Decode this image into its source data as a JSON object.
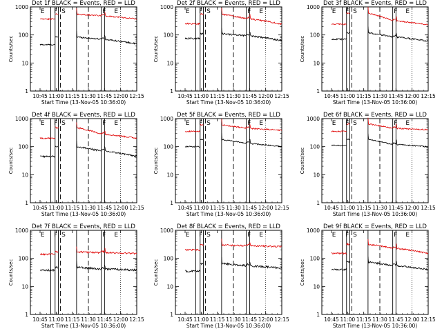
{
  "chart_data": [
    {
      "type": "line",
      "title": "Det 1f BLACK = Events, RED = LLD",
      "xlabel": "Start Time (13-Nov-05 10:36:00)",
      "ylabel": "Counts/sec",
      "series": [
        {
          "name": "Events",
          "color": "#000000",
          "base": [
            45,
            45,
            85,
            85,
            70,
            70,
            48
          ],
          "noise": 0.06
        },
        {
          "name": "LLD",
          "color": "#e00000",
          "base": [
            370,
            370,
            550,
            550,
            480,
            480,
            370
          ],
          "noise": 0.05
        }
      ]
    },
    {
      "type": "line",
      "title": "Det 2f BLACK = Events, RED = LLD",
      "xlabel": "Start Time (13-Nov-05 10:36:00)",
      "ylabel": "Counts/sec",
      "series": [
        {
          "name": "Events",
          "color": "#000000",
          "base": [
            75,
            75,
            110,
            110,
            95,
            95,
            62
          ],
          "noise": 0.07
        },
        {
          "name": "LLD",
          "color": "#e00000",
          "base": [
            250,
            250,
            550,
            550,
            380,
            380,
            240
          ],
          "noise": 0.06
        }
      ]
    },
    {
      "type": "line",
      "title": "Det 3f BLACK = Events, RED = LLD",
      "xlabel": "Start Time (13-Nov-05 10:36:00)",
      "ylabel": "Counts/sec",
      "series": [
        {
          "name": "Events",
          "color": "#000000",
          "base": [
            70,
            70,
            120,
            120,
            85,
            85,
            60
          ],
          "noise": 0.06
        },
        {
          "name": "LLD",
          "color": "#e00000",
          "base": [
            240,
            240,
            600,
            600,
            320,
            320,
            230
          ],
          "noise": 0.05
        }
      ]
    },
    {
      "type": "line",
      "title": "Det 4f BLACK = Events, RED = LLD",
      "xlabel": "Start Time (13-Nov-05 10:36:00)",
      "ylabel": "Counts/sec",
      "series": [
        {
          "name": "Events",
          "color": "#000000",
          "base": [
            45,
            45,
            100,
            100,
            70,
            70,
            45
          ],
          "noise": 0.07
        },
        {
          "name": "LLD",
          "color": "#e00000",
          "base": [
            200,
            200,
            480,
            480,
            280,
            280,
            200
          ],
          "noise": 0.06
        }
      ]
    },
    {
      "type": "line",
      "title": "Det 5f BLACK = Events, RED = LLD",
      "xlabel": "Start Time (13-Nov-05 10:36:00)",
      "ylabel": "Counts/sec",
      "series": [
        {
          "name": "Events",
          "color": "#000000",
          "base": [
            100,
            100,
            180,
            180,
            130,
            130,
            100
          ],
          "noise": 0.05
        },
        {
          "name": "LLD",
          "color": "#e00000",
          "base": [
            350,
            350,
            600,
            600,
            450,
            450,
            380
          ],
          "noise": 0.05
        }
      ]
    },
    {
      "type": "line",
      "title": "Det 6f BLACK = Events, RED = LLD",
      "xlabel": "Start Time (13-Nov-05 10:36:00)",
      "ylabel": "Counts/sec",
      "series": [
        {
          "name": "Events",
          "color": "#000000",
          "base": [
            110,
            110,
            180,
            180,
            120,
            120,
            100
          ],
          "noise": 0.05
        },
        {
          "name": "LLD",
          "color": "#e00000",
          "base": [
            350,
            350,
            650,
            650,
            450,
            450,
            400
          ],
          "noise": 0.05
        }
      ]
    },
    {
      "type": "line",
      "title": "Det 7f BLACK = Events, RED = LLD",
      "xlabel": "Start Time (13-Nov-05 10:36:00)",
      "ylabel": "Counts/sec",
      "series": [
        {
          "name": "Events",
          "color": "#000000",
          "base": [
            38,
            38,
            48,
            48,
            42,
            42,
            38
          ],
          "noise": 0.08
        },
        {
          "name": "LLD",
          "color": "#e00000",
          "base": [
            140,
            140,
            170,
            170,
            160,
            160,
            150
          ],
          "noise": 0.07
        }
      ]
    },
    {
      "type": "line",
      "title": "Det 8f BLACK = Events, RED = LLD",
      "xlabel": "Start Time (13-Nov-05 10:36:00)",
      "ylabel": "Counts/sec",
      "series": [
        {
          "name": "Events",
          "color": "#000000",
          "base": [
            35,
            35,
            65,
            65,
            55,
            55,
            45
          ],
          "noise": 0.08
        },
        {
          "name": "LLD",
          "color": "#e00000",
          "base": [
            200,
            200,
            300,
            300,
            280,
            280,
            260
          ],
          "noise": 0.07
        }
      ]
    },
    {
      "type": "line",
      "title": "Det 9f BLACK = Events, RED = LLD",
      "xlabel": "Start Time (13-Nov-05 10:36:00)",
      "ylabel": "Counts/sec",
      "series": [
        {
          "name": "Events",
          "color": "#000000",
          "base": [
            40,
            40,
            75,
            75,
            55,
            55,
            40
          ],
          "noise": 0.07
        },
        {
          "name": "LLD",
          "color": "#e00000",
          "base": [
            150,
            150,
            320,
            320,
            230,
            230,
            150
          ],
          "noise": 0.06
        }
      ]
    }
  ],
  "shared": {
    "x_ticks": [
      "10:45",
      "11:00",
      "11:15",
      "11:30",
      "11:45",
      "12:00",
      "12:15"
    ],
    "x_tick_minutes": [
      9,
      24,
      39,
      54,
      69,
      84,
      99
    ],
    "x_range_minutes": [
      0,
      99
    ],
    "y_scale": "log",
    "y_range": [
      1,
      1000
    ],
    "y_ticks": [
      "1",
      "10",
      "100",
      "1000"
    ],
    "segment_labels": [
      {
        "label": "E",
        "minute": 9.5
      },
      {
        "label": "F",
        "minute": 22
      },
      {
        "label": "S",
        "minute": 29
      },
      {
        "label": "F",
        "minute": 67
      },
      {
        "label": "E",
        "minute": 78
      }
    ],
    "solid_lines_minutes": [
      19,
      23,
      26,
      43,
      66,
      69
    ],
    "dashed_lines_minutes": [
      28,
      54
    ],
    "dotted_lines_minutes": [
      84,
      99
    ],
    "data_windows_minutes": [
      [
        9,
        19
      ],
      [
        19,
        23
      ],
      [
        23,
        26
      ],
      [
        43,
        66
      ],
      [
        66,
        69
      ],
      [
        69,
        99
      ]
    ]
  }
}
